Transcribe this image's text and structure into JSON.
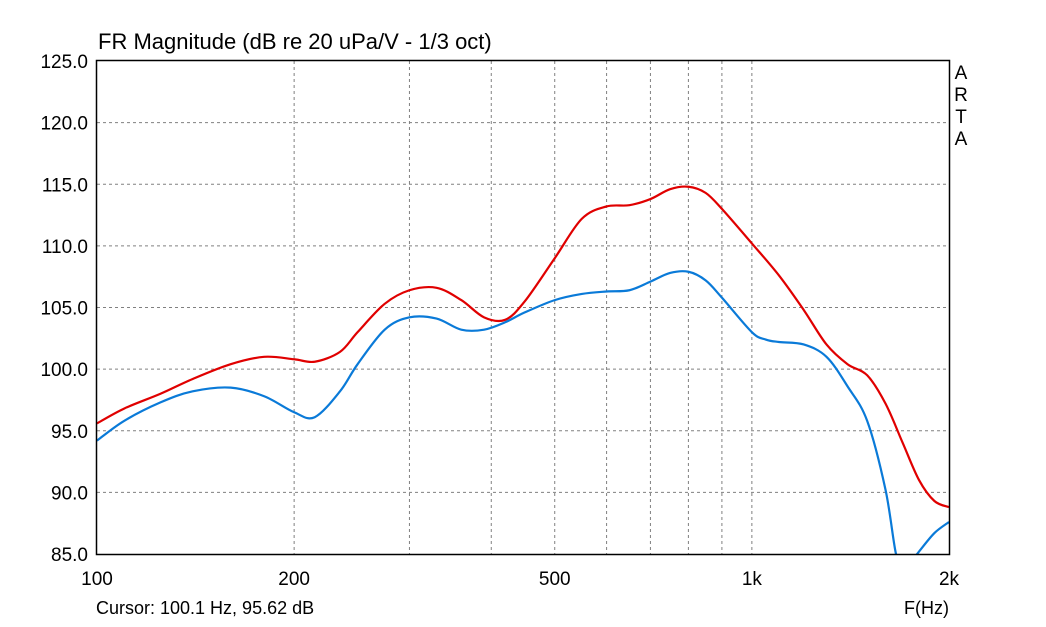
{
  "chart_data": {
    "type": "line",
    "title": "FR Magnitude (dB re 20 uPa/V - 1/3 oct)",
    "xlabel": "F(Hz)",
    "ylabel": "",
    "x_scale": "log",
    "xlim": [
      100,
      2000
    ],
    "ylim": [
      85,
      125
    ],
    "grid": true,
    "y_ticks": [
      "125.0",
      "120.0",
      "115.0",
      "110.0",
      "105.0",
      "100.0",
      "95.0",
      "90.0",
      "85.0"
    ],
    "y_tick_values": [
      125,
      120,
      115,
      110,
      105,
      100,
      95,
      90,
      85
    ],
    "x_ticks": [
      {
        "value": 100,
        "label": "100"
      },
      {
        "value": 200,
        "label": "200"
      },
      {
        "value": 500,
        "label": "500"
      },
      {
        "value": 1000,
        "label": "1k"
      },
      {
        "value": 2000,
        "label": "2k"
      }
    ],
    "x_gridlines": [
      200,
      300,
      400,
      500,
      600,
      700,
      800,
      900,
      1000
    ],
    "brand_label": "ARTA",
    "cursor_text": "Cursor: 100.1 Hz, 95.62 dB",
    "series": [
      {
        "color": "#e00000",
        "x": [
          100,
          110,
          125,
          140,
          160,
          180,
          200,
          215,
          235,
          250,
          275,
          300,
          330,
          360,
          390,
          420,
          450,
          500,
          550,
          600,
          650,
          700,
          750,
          800,
          850,
          900,
          1000,
          1100,
          1200,
          1300,
          1400,
          1500,
          1600,
          1700,
          1800,
          1900,
          2000
        ],
        "y": [
          95.6,
          96.8,
          98.0,
          99.2,
          100.4,
          101.0,
          100.8,
          100.6,
          101.4,
          103.0,
          105.3,
          106.4,
          106.6,
          105.6,
          104.2,
          104.0,
          105.5,
          109.0,
          112.2,
          113.2,
          113.3,
          113.8,
          114.6,
          114.8,
          114.3,
          113.0,
          110.2,
          107.6,
          104.8,
          102.0,
          100.4,
          99.5,
          97.2,
          94.0,
          91.0,
          89.3,
          88.8
        ]
      },
      {
        "color": "#0a7ad8",
        "x": [
          100,
          110,
          125,
          140,
          160,
          180,
          200,
          215,
          235,
          250,
          275,
          300,
          330,
          360,
          390,
          420,
          450,
          500,
          550,
          600,
          650,
          700,
          750,
          800,
          850,
          900,
          1000,
          1050,
          1100,
          1200,
          1300,
          1400,
          1500,
          1600,
          1660,
          1700,
          1750,
          1800,
          1900,
          2000
        ],
        "y": [
          94.2,
          95.8,
          97.3,
          98.2,
          98.5,
          97.8,
          96.5,
          96.1,
          98.2,
          100.4,
          103.2,
          104.2,
          104.1,
          103.2,
          103.2,
          103.8,
          104.6,
          105.6,
          106.1,
          106.3,
          106.4,
          107.1,
          107.8,
          107.9,
          107.2,
          105.8,
          103.0,
          102.4,
          102.2,
          102.0,
          101.0,
          98.6,
          95.8,
          90.2,
          85.0,
          84.3,
          84.4,
          85.2,
          86.7,
          87.6
        ]
      }
    ]
  }
}
